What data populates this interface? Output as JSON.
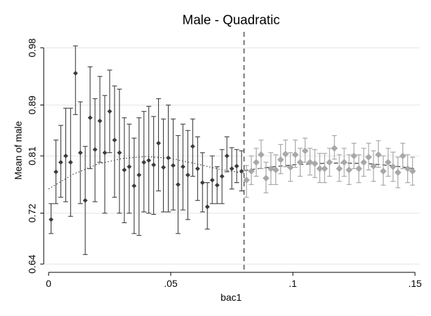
{
  "chart_data": {
    "type": "scatter",
    "title": "Male - Quadratic",
    "xlabel": "bac1",
    "ylabel": "Mean of male",
    "xlim": [
      -0.002,
      0.152
    ],
    "ylim": [
      0.627,
      1.005
    ],
    "x_ticks": [
      0,
      0.05,
      0.1,
      0.15
    ],
    "x_tick_labels": [
      "0",
      ".05",
      ".1",
      ".15"
    ],
    "y_ticks": [
      0.64,
      0.72,
      0.81,
      0.89,
      0.98
    ],
    "y_tick_labels": [
      "0.64",
      "0.72",
      "0.81",
      "0.89",
      "0.98"
    ],
    "grid": "horizontal",
    "legend": "none",
    "cutoff_x": 0.08,
    "colors": {
      "below": "#3c3c3c",
      "above": "#a8a8a8",
      "grid": "#e4e4e4"
    },
    "series": [
      {
        "side": "below",
        "x": [
          0.001,
          0.003,
          0.005,
          0.007,
          0.009,
          0.011,
          0.013,
          0.015,
          0.017,
          0.019,
          0.021,
          0.023,
          0.025,
          0.027,
          0.029,
          0.031,
          0.033,
          0.035,
          0.037,
          0.039,
          0.041,
          0.043,
          0.045,
          0.047,
          0.049,
          0.051,
          0.053,
          0.055,
          0.057,
          0.059,
          0.061,
          0.063,
          0.065,
          0.067,
          0.069,
          0.071,
          0.073,
          0.075,
          0.077,
          0.079
        ],
        "y": [
          0.71,
          0.785,
          0.8,
          0.81,
          0.8,
          0.94,
          0.815,
          0.74,
          0.87,
          0.82,
          0.865,
          0.815,
          0.88,
          0.835,
          0.815,
          0.788,
          0.793,
          0.763,
          0.78,
          0.8,
          0.803,
          0.796,
          0.83,
          0.792,
          0.807,
          0.795,
          0.765,
          0.793,
          0.78,
          0.825,
          0.79,
          0.768,
          0.73,
          0.772,
          0.764,
          0.778,
          0.81,
          0.79,
          0.794,
          0.786
        ],
        "lo": [
          0.688,
          0.735,
          0.745,
          0.738,
          0.715,
          0.875,
          0.735,
          0.655,
          0.79,
          0.738,
          0.8,
          0.72,
          0.815,
          0.745,
          0.72,
          0.705,
          0.72,
          0.688,
          0.685,
          0.722,
          0.72,
          0.718,
          0.755,
          0.722,
          0.722,
          0.725,
          0.688,
          0.725,
          0.71,
          0.778,
          0.74,
          0.722,
          0.695,
          0.735,
          0.735,
          0.735,
          0.785,
          0.758,
          0.768,
          0.755
        ],
        "hi": [
          0.735,
          0.835,
          0.858,
          0.885,
          0.885,
          0.983,
          0.895,
          0.825,
          0.95,
          0.9,
          0.935,
          0.905,
          0.945,
          0.92,
          0.915,
          0.87,
          0.86,
          0.838,
          0.87,
          0.88,
          0.888,
          0.872,
          0.9,
          0.868,
          0.89,
          0.868,
          0.842,
          0.86,
          0.85,
          0.868,
          0.84,
          0.815,
          0.768,
          0.81,
          0.793,
          0.82,
          0.84,
          0.823,
          0.82,
          0.818
        ],
        "fit": {
          "type": "quadratic",
          "style": "dotted",
          "points": [
            [
              0.0,
              0.758
            ],
            [
              0.01,
              0.781
            ],
            [
              0.02,
              0.797
            ],
            [
              0.03,
              0.806
            ],
            [
              0.04,
              0.809
            ],
            [
              0.05,
              0.806
            ],
            [
              0.06,
              0.798
            ],
            [
              0.07,
              0.789
            ],
            [
              0.08,
              0.783
            ]
          ]
        }
      },
      {
        "side": "above",
        "x": [
          0.081,
          0.083,
          0.085,
          0.087,
          0.089,
          0.091,
          0.093,
          0.095,
          0.097,
          0.099,
          0.101,
          0.103,
          0.105,
          0.107,
          0.109,
          0.111,
          0.113,
          0.115,
          0.117,
          0.119,
          0.121,
          0.123,
          0.125,
          0.127,
          0.129,
          0.131,
          0.133,
          0.135,
          0.137,
          0.139,
          0.141,
          0.143,
          0.145,
          0.147,
          0.149
        ],
        "y": [
          0.772,
          0.786,
          0.8,
          0.812,
          0.775,
          0.79,
          0.788,
          0.804,
          0.813,
          0.792,
          0.812,
          0.8,
          0.818,
          0.8,
          0.798,
          0.79,
          0.79,
          0.8,
          0.822,
          0.79,
          0.8,
          0.788,
          0.81,
          0.79,
          0.8,
          0.808,
          0.794,
          0.812,
          0.786,
          0.8,
          0.793,
          0.784,
          0.81,
          0.79,
          0.786
        ],
        "lo": [
          0.745,
          0.765,
          0.778,
          0.79,
          0.752,
          0.765,
          0.765,
          0.782,
          0.793,
          0.77,
          0.792,
          0.778,
          0.8,
          0.78,
          0.776,
          0.768,
          0.768,
          0.778,
          0.805,
          0.77,
          0.778,
          0.765,
          0.79,
          0.768,
          0.778,
          0.788,
          0.77,
          0.792,
          0.764,
          0.778,
          0.77,
          0.76,
          0.79,
          0.768,
          0.764
        ],
        "hi": [
          0.795,
          0.81,
          0.822,
          0.835,
          0.8,
          0.815,
          0.812,
          0.828,
          0.835,
          0.815,
          0.835,
          0.822,
          0.838,
          0.822,
          0.82,
          0.814,
          0.814,
          0.822,
          0.842,
          0.812,
          0.822,
          0.812,
          0.83,
          0.812,
          0.822,
          0.83,
          0.818,
          0.834,
          0.81,
          0.822,
          0.816,
          0.808,
          0.83,
          0.812,
          0.808
        ],
        "fit": {
          "type": "quadratic",
          "style": "dashed",
          "points": [
            [
              0.08,
              0.787
            ],
            [
              0.09,
              0.792
            ],
            [
              0.1,
              0.796
            ],
            [
              0.11,
              0.798
            ],
            [
              0.12,
              0.799
            ],
            [
              0.13,
              0.798
            ],
            [
              0.14,
              0.795
            ],
            [
              0.15,
              0.79
            ]
          ]
        }
      }
    ]
  }
}
